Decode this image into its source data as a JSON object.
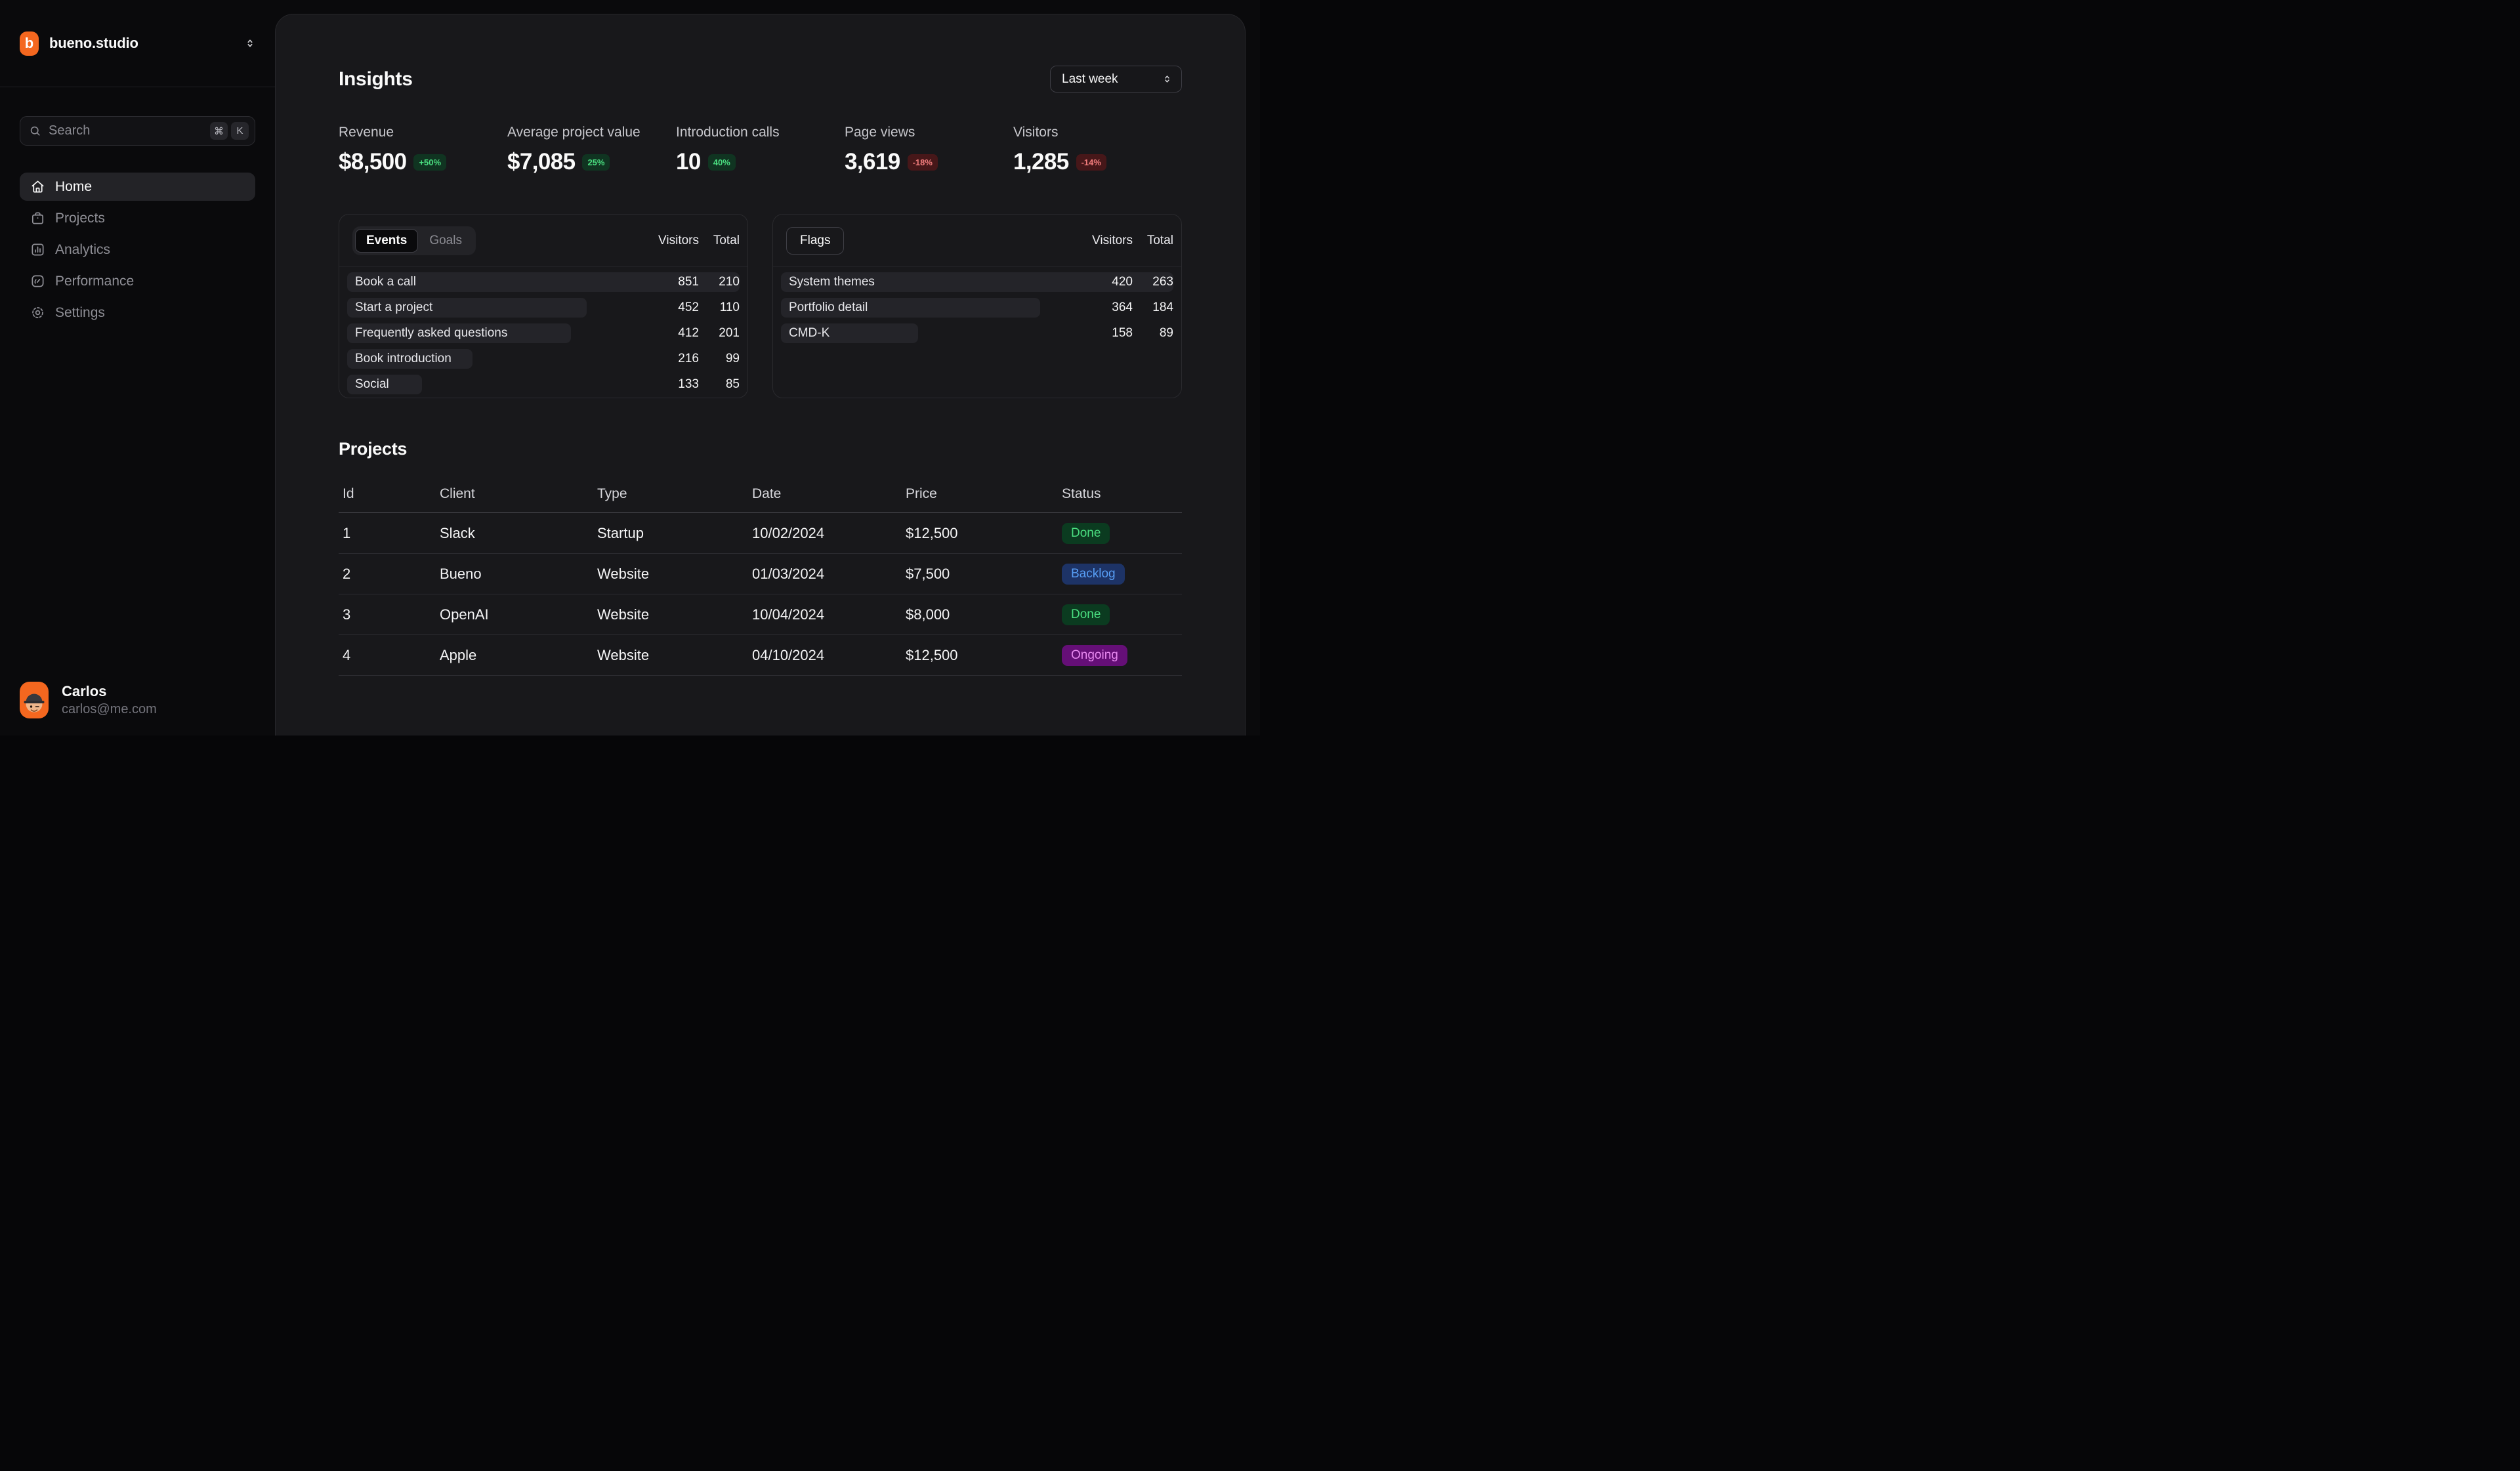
{
  "brand": {
    "name": "bueno.studio",
    "logo_letter": "b"
  },
  "search": {
    "placeholder": "Search",
    "shortcut_keys": [
      "⌘",
      "K"
    ]
  },
  "sidebar": {
    "nav": [
      {
        "label": "Home",
        "icon": "home-icon",
        "active": true
      },
      {
        "label": "Projects",
        "icon": "briefcase-icon",
        "active": false
      },
      {
        "label": "Analytics",
        "icon": "bar-chart-icon",
        "active": false
      },
      {
        "label": "Performance",
        "icon": "gauge-icon",
        "active": false
      },
      {
        "label": "Settings",
        "icon": "gear-icon",
        "active": false
      }
    ]
  },
  "user": {
    "name": "Carlos",
    "email": "carlos@me.com"
  },
  "header": {
    "title": "Insights",
    "range_selected": "Last week"
  },
  "kpis": [
    {
      "label": "Revenue",
      "value": "$8,500",
      "delta": "+50%",
      "trend": "up"
    },
    {
      "label": "Average project value",
      "value": "$7,085",
      "delta": "25%",
      "trend": "up"
    },
    {
      "label": "Introduction calls",
      "value": "10",
      "delta": "40%",
      "trend": "up"
    },
    {
      "label": "Page views",
      "value": "3,619",
      "delta": "-18%",
      "trend": "down"
    },
    {
      "label": "Visitors",
      "value": "1,285",
      "delta": "-14%",
      "trend": "down"
    }
  ],
  "panels": {
    "events": {
      "tabs": [
        "Events",
        "Goals"
      ],
      "active_tab": "Events",
      "columns": [
        "Visitors",
        "Total"
      ],
      "rows": [
        {
          "label": "Book a call",
          "visitors": "851",
          "total": "210",
          "bar_pct": 100
        },
        {
          "label": "Start a project",
          "visitors": "452",
          "total": "110",
          "bar_pct": 61
        },
        {
          "label": "Frequently asked questions",
          "visitors": "412",
          "total": "201",
          "bar_pct": 57
        },
        {
          "label": "Book introduction",
          "visitors": "216",
          "total": "99",
          "bar_pct": 32
        },
        {
          "label": "Social",
          "visitors": "133",
          "total": "85",
          "bar_pct": 19
        }
      ]
    },
    "flags": {
      "button": "Flags",
      "columns": [
        "Visitors",
        "Total"
      ],
      "rows": [
        {
          "label": "System themes",
          "visitors": "420",
          "total": "263",
          "bar_pct": 100
        },
        {
          "label": "Portfolio detail",
          "visitors": "364",
          "total": "184",
          "bar_pct": 66
        },
        {
          "label": "CMD-K",
          "visitors": "158",
          "total": "89",
          "bar_pct": 35
        }
      ]
    }
  },
  "projects": {
    "title": "Projects",
    "columns": [
      "Id",
      "Client",
      "Type",
      "Date",
      "Price",
      "Status"
    ],
    "rows": [
      {
        "id": "1",
        "client": "Slack",
        "type": "Startup",
        "date": "10/02/2024",
        "price": "$12,500",
        "status": "Done"
      },
      {
        "id": "2",
        "client": "Bueno",
        "type": "Website",
        "date": "01/03/2024",
        "price": "$7,500",
        "status": "Backlog"
      },
      {
        "id": "3",
        "client": "OpenAI",
        "type": "Website",
        "date": "10/04/2024",
        "price": "$8,000",
        "status": "Done"
      },
      {
        "id": "4",
        "client": "Apple",
        "type": "Website",
        "date": "04/10/2024",
        "price": "$12,500",
        "status": "Ongoing"
      }
    ]
  },
  "colors": {
    "brand_orange": "#f4671f",
    "positive_fg": "#4ade80",
    "positive_bg": "#103421",
    "negative_fg": "#f17c7c",
    "negative_bg": "#461719",
    "status": {
      "Done": {
        "fg": "#4ade80",
        "bg": "#0b3b20"
      },
      "Backlog": {
        "fg": "#579ef5",
        "bg": "#1d3366"
      },
      "Ongoing": {
        "fg": "#e889f0",
        "bg": "#650f77"
      }
    }
  }
}
